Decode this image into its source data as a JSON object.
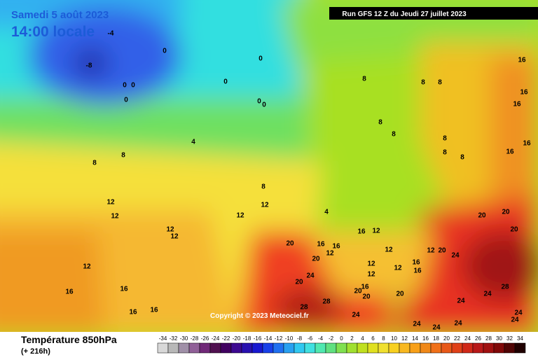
{
  "header": {
    "date": "Samedi 5 août 2023",
    "time": "14:00 locale",
    "run": "Run GFS 12 Z du Jeudi 27 juillet 2023"
  },
  "copyright": "Copyright © 2023 Meteociel.fr",
  "footer": {
    "title": "Température 850hPa",
    "lead": "(+ 216h)"
  },
  "legend": {
    "values": [
      -34,
      -32,
      -30,
      -28,
      -26,
      -24,
      -22,
      -20,
      -18,
      -16,
      -14,
      -12,
      -10,
      -8,
      -6,
      -4,
      -2,
      0,
      2,
      4,
      6,
      8,
      10,
      12,
      14,
      16,
      18,
      20,
      22,
      24,
      26,
      28,
      30,
      32,
      34
    ]
  },
  "contour_labels": [
    -4,
    -8,
    0,
    0,
    0,
    0,
    0,
    0,
    0,
    0,
    8,
    8,
    8,
    16,
    16,
    16,
    8,
    8,
    8,
    8,
    8,
    16,
    16,
    8,
    8,
    4,
    8,
    12,
    12,
    12,
    12,
    4,
    12,
    12,
    12,
    16,
    16,
    16,
    16,
    20,
    20,
    20,
    16,
    12,
    16,
    16,
    20,
    12,
    12,
    20,
    24,
    20,
    12,
    20,
    24,
    16,
    12,
    16,
    12,
    12,
    16,
    20,
    20,
    20,
    28,
    28,
    24,
    24,
    24,
    28,
    24,
    24,
    24,
    24,
    24
  ]
}
